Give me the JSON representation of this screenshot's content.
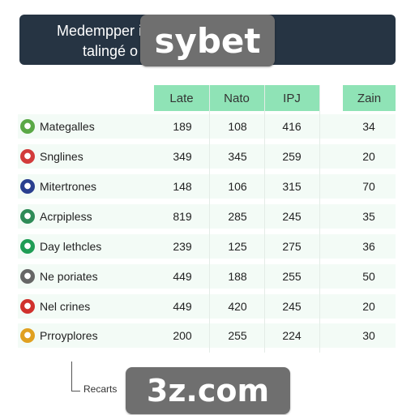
{
  "banner": {
    "line1": "Medempper                 iatutens de",
    "line2": "talingé                   o sybet:"
  },
  "watermarks": {
    "top": "sybet",
    "bottom": "3z.com"
  },
  "columns": [
    "Late",
    "Nato",
    "IPJ",
    "Zain"
  ],
  "rows": [
    {
      "label": "Mategalles",
      "icon": "leaf-icon",
      "icon_color": "#5aa846",
      "values": [
        "189",
        "108",
        "416",
        "34"
      ]
    },
    {
      "label": "Snglines",
      "icon": "flag-icon",
      "icon_color": "#d23b3b",
      "values": [
        "349",
        "345",
        "259",
        "20"
      ]
    },
    {
      "label": "Mitertrones",
      "icon": "badge-icon",
      "icon_color": "#2a3f8f",
      "values": [
        "148",
        "106",
        "315",
        "70"
      ]
    },
    {
      "label": "Acrpipless",
      "icon": "globe-icon",
      "icon_color": "#2e8b57",
      "values": [
        "819",
        "285",
        "245",
        "35"
      ]
    },
    {
      "label": "Day lethcles",
      "icon": "green-badge-icon",
      "icon_color": "#1f9d55",
      "values": [
        "239",
        "125",
        "275",
        "36"
      ]
    },
    {
      "label": "Ne poriates",
      "icon": "grid-icon",
      "icon_color": "#666666",
      "values": [
        "449",
        "188",
        "255",
        "50"
      ]
    },
    {
      "label": "Nel crines",
      "icon": "red-badge-icon",
      "icon_color": "#d0312d",
      "values": [
        "449",
        "420",
        "245",
        "20"
      ]
    },
    {
      "label": "Prroyplores",
      "icon": "puzzle-icon",
      "icon_color": "#e0a020",
      "values": [
        "200",
        "255",
        "224",
        "30"
      ]
    }
  ],
  "legend": "Recarts"
}
